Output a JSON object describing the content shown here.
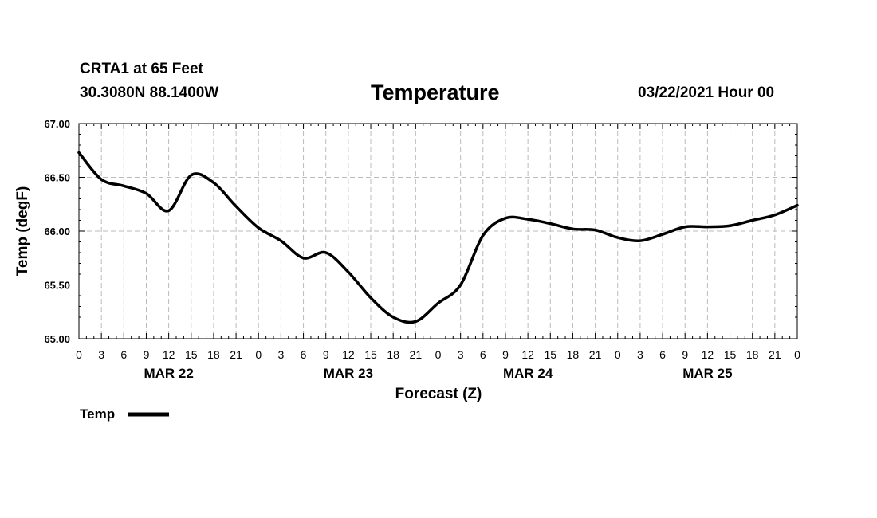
{
  "header": {
    "station": "CRTA1 at 65 Feet",
    "coords": "30.3080N 88.1400W",
    "title": "Temperature",
    "date": "03/22/2021 Hour 00"
  },
  "chart_data": {
    "type": "line",
    "title": "Temperature",
    "xlabel": "Forecast (Z)",
    "ylabel": "Temp (degF)",
    "ylim": [
      65.0,
      67.0
    ],
    "y_ticks": [
      "65.00",
      "65.50",
      "66.00",
      "66.50",
      "67.00"
    ],
    "x_range_hours": [
      0,
      96
    ],
    "x_tick_labels": [
      "0",
      "3",
      "6",
      "9",
      "12",
      "15",
      "18",
      "21",
      "0",
      "3",
      "6",
      "9",
      "12",
      "15",
      "18",
      "21",
      "0",
      "3",
      "6",
      "9",
      "12",
      "15",
      "18",
      "21",
      "0",
      "3",
      "6",
      "9",
      "12",
      "15",
      "18",
      "21",
      "0"
    ],
    "day_labels": [
      "MAR 22",
      "MAR 23",
      "MAR 24",
      "MAR 25"
    ],
    "grid": true,
    "legend_position": "bottom-left",
    "series": [
      {
        "name": "Temp",
        "color": "#000000",
        "x_hours": [
          0,
          3,
          6,
          9,
          12,
          15,
          18,
          21,
          24,
          27,
          30,
          33,
          36,
          39,
          42,
          45,
          48,
          51,
          54,
          57,
          60,
          63,
          66,
          69,
          72,
          75,
          78,
          81,
          84,
          87,
          90,
          93,
          96
        ],
        "values": [
          66.73,
          66.48,
          66.42,
          66.35,
          66.19,
          66.52,
          66.45,
          66.23,
          66.03,
          65.91,
          65.75,
          65.8,
          65.62,
          65.38,
          65.2,
          65.16,
          65.33,
          65.5,
          65.96,
          66.12,
          66.11,
          66.07,
          66.02,
          66.01,
          65.94,
          65.91,
          65.97,
          66.04,
          66.04,
          66.05,
          66.1,
          66.15,
          66.24
        ]
      }
    ]
  }
}
